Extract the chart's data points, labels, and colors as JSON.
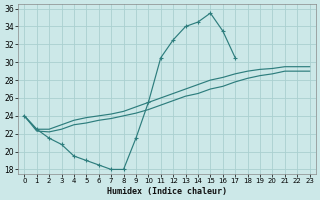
{
  "bg_color": "#cce8e8",
  "grid_color": "#aad0d0",
  "line_color": "#2d7d7d",
  "xlim": [
    -0.5,
    23.5
  ],
  "ylim": [
    17.5,
    36.5
  ],
  "yticks": [
    18,
    20,
    22,
    24,
    26,
    28,
    30,
    32,
    34,
    36
  ],
  "xticks": [
    0,
    1,
    2,
    3,
    4,
    5,
    6,
    7,
    8,
    9,
    10,
    11,
    12,
    13,
    14,
    15,
    16,
    17,
    18,
    19,
    20,
    21,
    22,
    23
  ],
  "xlabel": "Humidex (Indice chaleur)",
  "zigzag_x": [
    0,
    1,
    2,
    3,
    4,
    5,
    6,
    7,
    8,
    9,
    10,
    11,
    12,
    13,
    14,
    15,
    16,
    17
  ],
  "zigzag_y": [
    24.0,
    22.5,
    21.5,
    20.8,
    19.5,
    19.0,
    18.5,
    18.0,
    18.0,
    21.5,
    25.5,
    30.5,
    32.5,
    34.0,
    34.5,
    35.5,
    33.5,
    30.5
  ],
  "line1_x": [
    0,
    1,
    2,
    3,
    4,
    5,
    6,
    7,
    8,
    9,
    10,
    11,
    12,
    13,
    14,
    15,
    16,
    17,
    18,
    19,
    20,
    21,
    22,
    23
  ],
  "line1_y": [
    24.0,
    22.5,
    22.5,
    23.0,
    23.5,
    23.8,
    24.0,
    24.2,
    24.5,
    25.0,
    25.5,
    26.0,
    26.5,
    27.0,
    27.5,
    28.0,
    28.3,
    28.7,
    29.0,
    29.2,
    29.3,
    29.5,
    29.5,
    29.5
  ],
  "line2_x": [
    0,
    1,
    2,
    3,
    4,
    5,
    6,
    7,
    8,
    9,
    10,
    11,
    12,
    13,
    14,
    15,
    16,
    17,
    18,
    19,
    20,
    21,
    22,
    23
  ],
  "line2_y": [
    24.0,
    22.3,
    22.2,
    22.5,
    23.0,
    23.2,
    23.5,
    23.7,
    24.0,
    24.3,
    24.7,
    25.2,
    25.7,
    26.2,
    26.5,
    27.0,
    27.3,
    27.8,
    28.2,
    28.5,
    28.7,
    29.0,
    29.0,
    29.0
  ]
}
